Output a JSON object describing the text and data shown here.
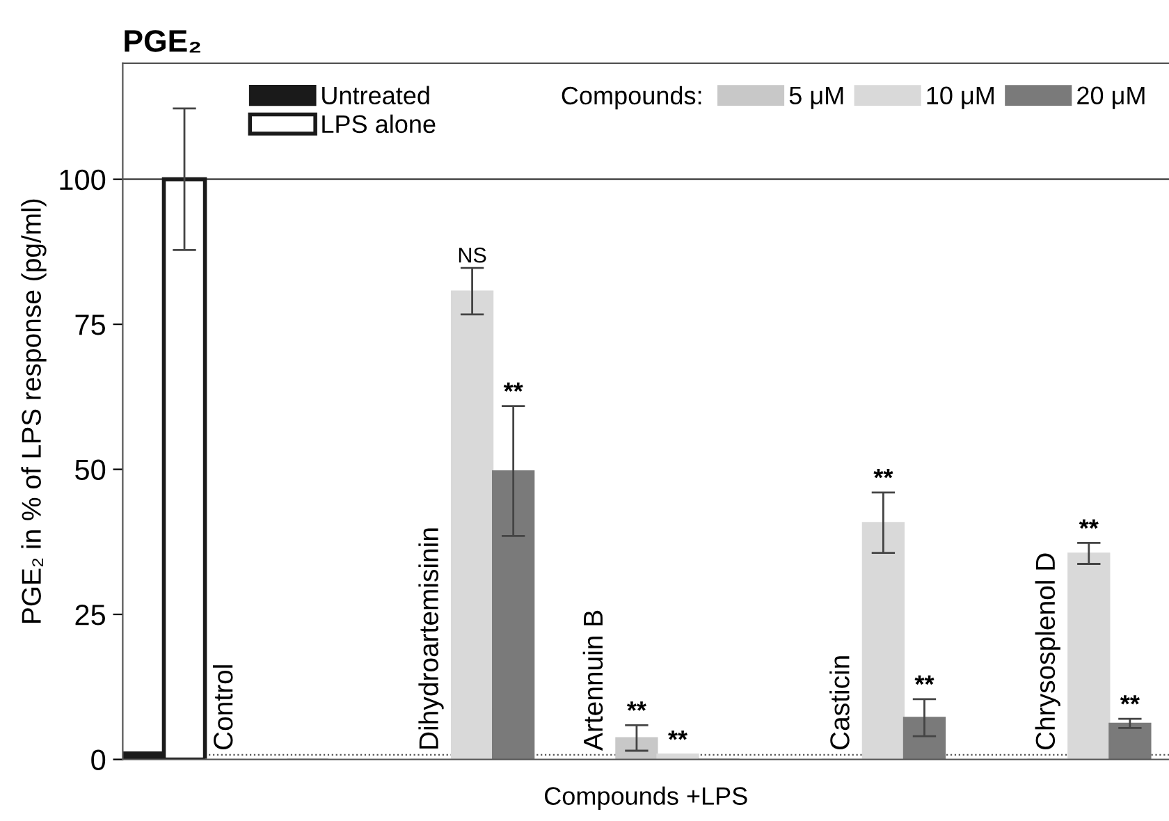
{
  "chart_data": {
    "type": "bar",
    "title": "PGE₂",
    "ylabel": "PGE₂ in % of LPS response (pg/ml)",
    "xlabel": "Compounds +LPS",
    "legend_title": "Compounds:",
    "categories": [
      "Control",
      "Dihydroartemisinin",
      "Artennuin B",
      "Casticin",
      "Chrysosplenol D"
    ],
    "series": [
      {
        "name": "Untreated",
        "color": "#1a1a1a",
        "values": [
          1.2,
          null,
          null,
          null,
          null
        ],
        "errors": [
          null,
          null,
          null,
          null,
          null
        ]
      },
      {
        "name": "LPS alone",
        "color": "#ffffff",
        "values": [
          100,
          null,
          null,
          null,
          null
        ],
        "errors": [
          12.2,
          null,
          null,
          null,
          null
        ]
      },
      {
        "name": "5 μM",
        "color": "#c8c8c8",
        "values": [
          0,
          0,
          3.7,
          0,
          0
        ],
        "errors": [
          null,
          null,
          2.2,
          null,
          null
        ],
        "value_labels": [
          null,
          null,
          "**",
          null,
          null
        ]
      },
      {
        "name": "10 μM",
        "color": "#d9d9d9",
        "values": [
          0,
          80.7,
          0.9,
          40.8,
          35.5
        ],
        "errors": [
          null,
          4.0,
          null,
          5.2,
          1.8
        ],
        "value_labels": [
          null,
          "NS",
          "**",
          "**",
          "**"
        ]
      },
      {
        "name": "20 μM",
        "color": "#7a7a7a",
        "values": [
          0,
          49.7,
          0,
          7.2,
          6.2
        ],
        "errors": [
          null,
          11.2,
          null,
          3.2,
          0.8
        ],
        "value_labels": [
          null,
          "**",
          null,
          "**",
          "**"
        ]
      }
    ],
    "ylim": [
      0,
      120
    ],
    "yticks": [
      0,
      25,
      50,
      75,
      100
    ],
    "tick_labels": "y",
    "grid": false,
    "legend": "top",
    "ref_lines": [
      {
        "axis": "y",
        "value": 100,
        "color": "#555555",
        "line_style": "solid"
      },
      {
        "axis": "y",
        "value": 0.8,
        "color": "#555555",
        "line_style": "dotted"
      }
    ]
  }
}
